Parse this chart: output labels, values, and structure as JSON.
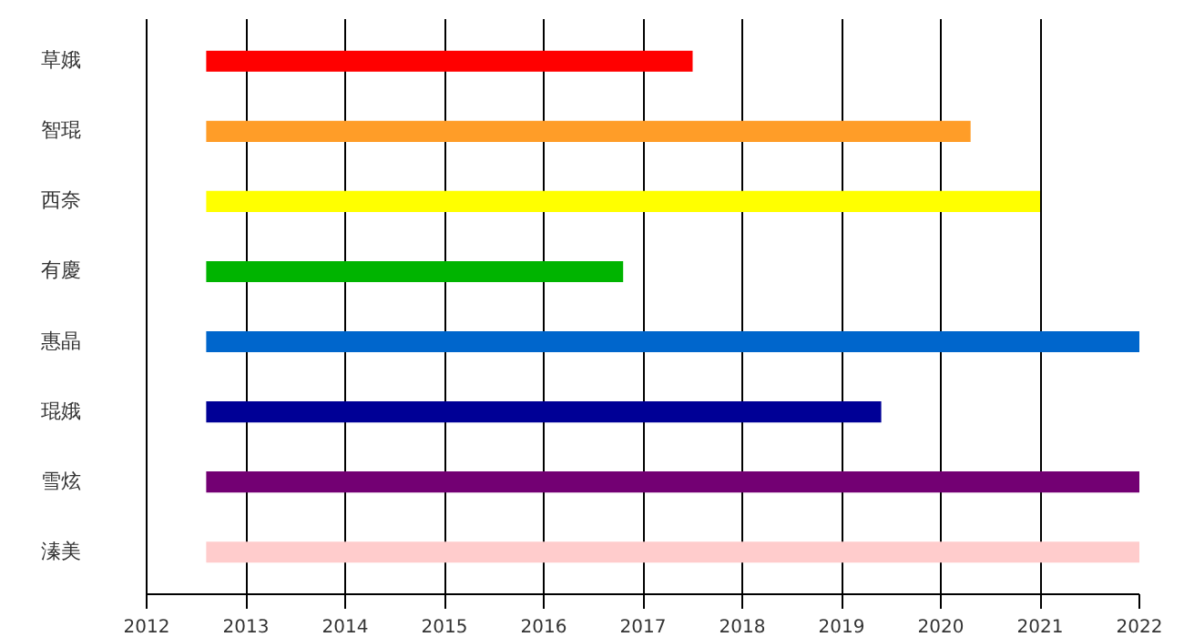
{
  "chart_data": {
    "type": "bar",
    "orientation": "horizontal",
    "categories": [
      "草娥",
      "智琨",
      "西奈",
      "有慶",
      "惠晶",
      "琨娥",
      "雪炫",
      "溱美"
    ],
    "base": [
      2012.6,
      2012.6,
      2012.6,
      2012.6,
      2012.6,
      2012.6,
      2012.6,
      2012.6
    ],
    "values": [
      4.9,
      7.7,
      8.4,
      4.2,
      9.4,
      6.8,
      9.4,
      9.4
    ],
    "colors": [
      "#ff0000",
      "#ff9d28",
      "#ffff00",
      "#00b400",
      "#0066cc",
      "#000096",
      "#730073",
      "#ffcccc"
    ],
    "xlim": [
      2012,
      2022
    ],
    "xticks": [
      2012,
      2013,
      2014,
      2015,
      2016,
      2017,
      2018,
      2019,
      2020,
      2021,
      2022
    ],
    "grid": "x"
  }
}
